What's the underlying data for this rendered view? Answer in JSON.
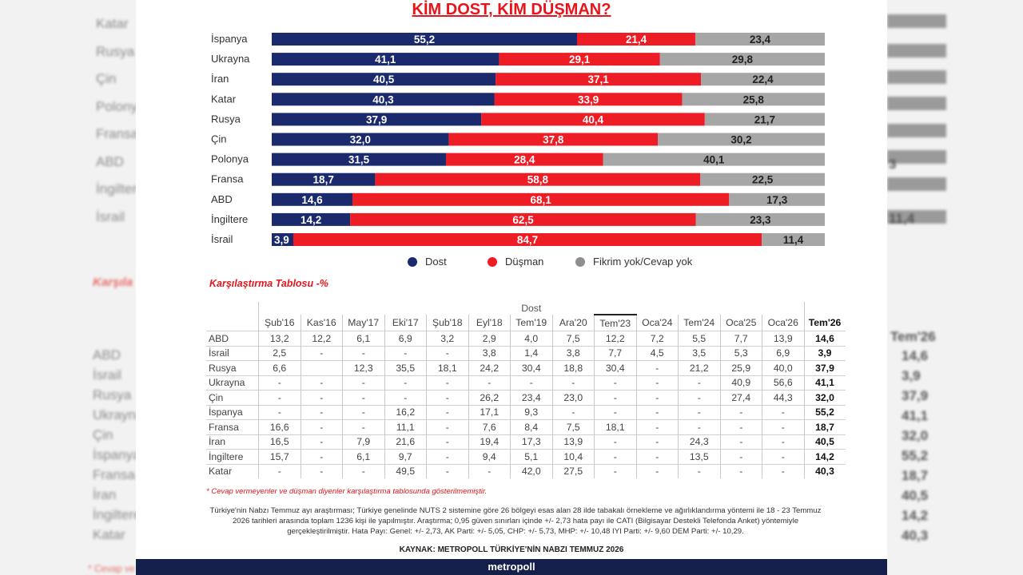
{
  "title": "KİM DOST, KİM DÜŞMAN?",
  "colors": {
    "dost": "#1a2a6c",
    "dusman": "#ee1c25",
    "fikrim_yok": "#a6a6a6",
    "accent": "#e8141b",
    "brand_bar": "#14204a"
  },
  "chart_data": {
    "type": "bar",
    "orientation": "horizontal-stacked-100",
    "categories": [
      "İspanya",
      "Ukrayna",
      "İran",
      "Katar",
      "Rusya",
      "Çin",
      "Polonya",
      "Fransa",
      "ABD",
      "İngiltere",
      "İsrail"
    ],
    "series": [
      {
        "name": "Dost",
        "values": [
          55.2,
          41.1,
          40.5,
          40.3,
          37.9,
          32.0,
          31.5,
          18.7,
          14.6,
          14.2,
          3.9
        ]
      },
      {
        "name": "Düşman",
        "values": [
          21.4,
          29.1,
          37.1,
          33.9,
          40.4,
          37.8,
          28.4,
          58.8,
          68.1,
          62.5,
          84.7
        ]
      },
      {
        "name": "Fikrim yok/Cevap yok",
        "values": [
          23.4,
          29.8,
          22.4,
          25.8,
          21.7,
          30.2,
          40.1,
          22.5,
          17.3,
          23.3,
          11.4
        ]
      }
    ],
    "legend_position": "bottom"
  },
  "legend": [
    "Dost",
    "Düşman",
    "Fikrim yok/Cevap yok"
  ],
  "comparison": {
    "title": "Karşılaştırma Tablosu -%",
    "group_label": "Dost",
    "columns": [
      "Şub'16",
      "Kas'16",
      "May'17",
      "Eki'17",
      "Şub'18",
      "Eyl'18",
      "Tem'19",
      "Ara'20",
      "Tem'23",
      "Oca'24",
      "Tem'24",
      "Oca'25",
      "Oca'26",
      "Tem'26"
    ],
    "rows": [
      {
        "name": "ABD",
        "values": [
          "13,2",
          "12,2",
          "6,1",
          "6,9",
          "3,2",
          "2,9",
          "4,0",
          "7,5",
          "12,2",
          "7,2",
          "5,5",
          "7,7",
          "13,9",
          "14,6"
        ]
      },
      {
        "name": "İsrail",
        "values": [
          "2,5",
          "-",
          "-",
          "-",
          "-",
          "3,8",
          "1,4",
          "3,8",
          "7,7",
          "4,5",
          "3,5",
          "5,3",
          "6,9",
          "3,9"
        ]
      },
      {
        "name": "Rusya",
        "values": [
          "6,6",
          "",
          "12,3",
          "35,5",
          "18,1",
          "24,2",
          "30,4",
          "18,8",
          "30,4",
          "-",
          "21,2",
          "25,9",
          "40,0",
          "37,9"
        ]
      },
      {
        "name": "Ukrayna",
        "values": [
          "-",
          "-",
          "-",
          "-",
          "-",
          "-",
          "-",
          "-",
          "-",
          "-",
          "-",
          "40,9",
          "56,6",
          "41,1"
        ]
      },
      {
        "name": "Çin",
        "values": [
          "-",
          "-",
          "-",
          "-",
          "-",
          "26,2",
          "23,4",
          "23,0",
          "-",
          "-",
          "-",
          "27,4",
          "44,3",
          "32,0"
        ]
      },
      {
        "name": "İspanya",
        "values": [
          "-",
          "-",
          "-",
          "16,2",
          "-",
          "17,1",
          "9,3",
          "-",
          "-",
          "-",
          "-",
          "-",
          "-",
          "55,2"
        ]
      },
      {
        "name": "Fransa",
        "values": [
          "16,6",
          "-",
          "-",
          "11,1",
          "-",
          "7,6",
          "8,4",
          "7,5",
          "18,1",
          "-",
          "-",
          "-",
          "-",
          "18,7"
        ]
      },
      {
        "name": "İran",
        "values": [
          "16,5",
          "-",
          "7,9",
          "21,6",
          "-",
          "19,4",
          "17,3",
          "13,9",
          "-",
          "-",
          "24,3",
          "-",
          "-",
          "40,5"
        ]
      },
      {
        "name": "İngiltere",
        "values": [
          "15,7",
          "-",
          "6,1",
          "9,7",
          "-",
          "9,4",
          "5,1",
          "10,4",
          "-",
          "-",
          "13,5",
          "-",
          "-",
          "14,2"
        ]
      },
      {
        "name": "Katar",
        "values": [
          "-",
          "-",
          "-",
          "49,5",
          "-",
          "-",
          "42,0",
          "27,5",
          "-",
          "-",
          "-",
          "-",
          "-",
          "40,3"
        ]
      }
    ]
  },
  "footnote": "* Cevap vermeyenler ve düşman diyenler karşılaştırma tablosunda gösterilmemiştir.",
  "methodology": "Türkiye'nin Nabzı Temmuz ayı araştırması; Türkiye genelinde NUTS 2 sistemine göre 26 bölgeyi esas alan 28 ilde tabakalı örnekleme ve ağırlıklandırma yöntemi ile 18 - 23 Temmuz 2026 tarihleri arasında toplam 1236 kişi ile yapılmıştır. Araştırma; 0,95 güven sınırları içinde +/- 2,73 hata payı ile CATI (Bilgisayar Destekli Telefonda Anket) yöntemiyle gerçekleştirilmiştir. Hata Payı: Genel: +/- 2,73, AK Parti: +/- 5,05, CHP: +/- 5,73, MHP: +/- 10,48 IYI Parti: +/- 9,60 DEM Parti: +/- 10,29.",
  "source": "KAYNAK: METROPOLL TÜRKİYE'NİN NABZI TEMMUZ 2026",
  "brand": "metropoll",
  "background_left": {
    "labels": [
      "Katar",
      "Rusya",
      "Çin",
      "Polonya",
      "Fransa",
      "ABD",
      "İngiltere",
      "İsrail"
    ],
    "heading": "Karşıla",
    "table_labels": [
      "ABD",
      "İsrail",
      "Rusya",
      "Ukrayna",
      "Çin",
      "İspanya",
      "Fransa",
      "İran",
      "İngiltere",
      "Katar"
    ],
    "footnote": "* Cevap ve"
  },
  "background_right": {
    "bar_labels": [
      "3",
      "11,4"
    ],
    "header": "Tem'26",
    "values": [
      "14,6",
      "3,9",
      "37,9",
      "41,1",
      "32,0",
      "55,2",
      "18,7",
      "40,5",
      "14,2",
      "40,3"
    ]
  }
}
